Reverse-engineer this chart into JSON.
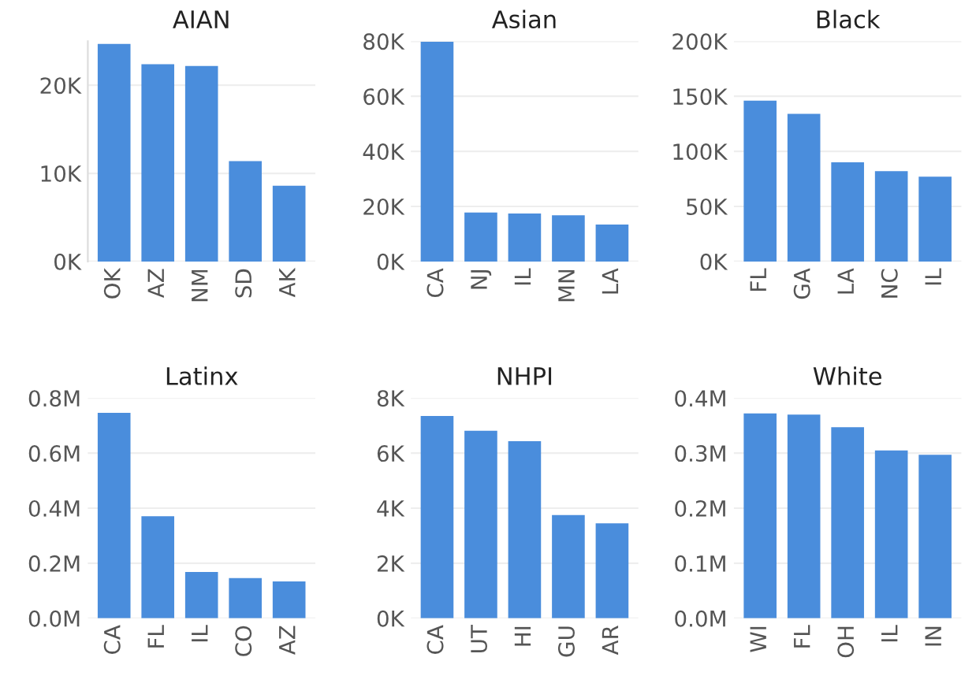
{
  "chart_data": [
    {
      "type": "bar",
      "title": "AIAN",
      "categories": [
        "OK",
        "AZ",
        "NM",
        "SD",
        "AK"
      ],
      "values": [
        24700,
        22400,
        22200,
        11400,
        8600
      ],
      "color": "#4a8ddc",
      "ylim": [
        0,
        25000
      ],
      "yticks": [
        {
          "value": 0,
          "label": "0K"
        },
        {
          "value": 10000,
          "label": "10K"
        },
        {
          "value": 20000,
          "label": "20K"
        }
      ],
      "grid": "y"
    },
    {
      "type": "bar",
      "title": "Asian",
      "categories": [
        "CA",
        "NJ",
        "IL",
        "MN",
        "LA"
      ],
      "values": [
        79800,
        17800,
        17400,
        16800,
        13400
      ],
      "color": "#4a8ddc",
      "ylim": [
        0,
        80000
      ],
      "yticks": [
        {
          "value": 0,
          "label": "0K"
        },
        {
          "value": 20000,
          "label": "20K"
        },
        {
          "value": 40000,
          "label": "40K"
        },
        {
          "value": 60000,
          "label": "60K"
        },
        {
          "value": 80000,
          "label": "80K"
        }
      ],
      "grid": "y"
    },
    {
      "type": "bar",
      "title": "Black",
      "categories": [
        "FL",
        "GA",
        "LA",
        "NC",
        "IL"
      ],
      "values": [
        146000,
        134000,
        90000,
        82000,
        77000
      ],
      "color": "#4a8ddc",
      "ylim": [
        0,
        200000
      ],
      "yticks": [
        {
          "value": 0,
          "label": "0K"
        },
        {
          "value": 50000,
          "label": "50K"
        },
        {
          "value": 100000,
          "label": "100K"
        },
        {
          "value": 150000,
          "label": "150K"
        },
        {
          "value": 200000,
          "label": "200K"
        }
      ],
      "grid": "y"
    },
    {
      "type": "bar",
      "title": "Latinx",
      "categories": [
        "CA",
        "FL",
        "IL",
        "CO",
        "AZ"
      ],
      "values": [
        746000,
        371000,
        168000,
        146000,
        134000
      ],
      "color": "#4a8ddc",
      "ylim": [
        0,
        800000
      ],
      "yticks": [
        {
          "value": 0,
          "label": "0.0M"
        },
        {
          "value": 200000,
          "label": "0.2M"
        },
        {
          "value": 400000,
          "label": "0.4M"
        },
        {
          "value": 600000,
          "label": "0.6M"
        },
        {
          "value": 800000,
          "label": "0.8M"
        }
      ],
      "grid": "y"
    },
    {
      "type": "bar",
      "title": "NHPI",
      "categories": [
        "CA",
        "UT",
        "HI",
        "GU",
        "AR"
      ],
      "values": [
        7350,
        6810,
        6430,
        3750,
        3450
      ],
      "color": "#4a8ddc",
      "ylim": [
        0,
        8000
      ],
      "yticks": [
        {
          "value": 0,
          "label": "0K"
        },
        {
          "value": 2000,
          "label": "2K"
        },
        {
          "value": 4000,
          "label": "4K"
        },
        {
          "value": 6000,
          "label": "6K"
        },
        {
          "value": 8000,
          "label": "8K"
        }
      ],
      "grid": "y"
    },
    {
      "type": "bar",
      "title": "White",
      "categories": [
        "WI",
        "FL",
        "OH",
        "IL",
        "IN"
      ],
      "values": [
        372000,
        370000,
        347000,
        305000,
        297000
      ],
      "color": "#4a8ddc",
      "ylim": [
        0,
        400000
      ],
      "yticks": [
        {
          "value": 0,
          "label": "0.0M"
        },
        {
          "value": 100000,
          "label": "0.1M"
        },
        {
          "value": 200000,
          "label": "0.2M"
        },
        {
          "value": 300000,
          "label": "0.3M"
        },
        {
          "value": 400000,
          "label": "0.4M"
        }
      ],
      "grid": "y"
    }
  ]
}
